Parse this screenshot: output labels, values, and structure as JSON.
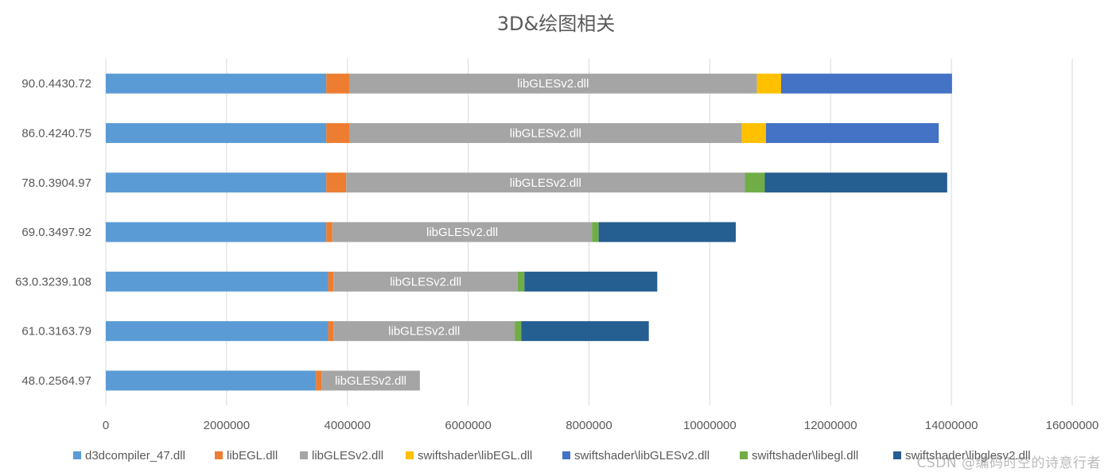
{
  "chart_data": {
    "type": "bar",
    "orientation": "horizontal",
    "stacked": true,
    "title": "3D&绘图相关",
    "xlabel": "",
    "ylabel": "",
    "xlim": [
      0,
      16000000
    ],
    "x_ticks": [
      0,
      2000000,
      4000000,
      6000000,
      8000000,
      10000000,
      12000000,
      14000000,
      16000000
    ],
    "x_tick_labels": [
      "0",
      "2000000",
      "4000000",
      "6000000",
      "8000000",
      "10000000",
      "12000000",
      "14000000",
      "16000000"
    ],
    "grid": "vertical",
    "legend_position": "bottom",
    "categories": [
      "90.0.4430.72",
      "86.0.4240.75",
      "78.0.3904.97",
      "69.0.3497.92",
      "63.0.3239.108",
      "61.0.3163.79",
      "48.0.2564.97"
    ],
    "series": [
      {
        "name": "d3dcompiler_47.dll",
        "color": "#5B9BD5",
        "values": [
          3650000,
          3650000,
          3650000,
          3650000,
          3680000,
          3680000,
          3480000
        ]
      },
      {
        "name": "libEGL.dll",
        "color": "#ED7D31",
        "values": [
          380000,
          380000,
          330000,
          100000,
          90000,
          90000,
          90000
        ]
      },
      {
        "name": "libGLESv2.dll",
        "color": "#A5A5A5",
        "values": [
          6750000,
          6500000,
          6600000,
          4300000,
          3050000,
          3000000,
          1630000
        ]
      },
      {
        "name": "swiftshader\\libEGL.dll",
        "color": "#FFC000",
        "values": [
          400000,
          400000,
          0,
          0,
          0,
          0,
          0
        ]
      },
      {
        "name": "swiftshader\\libGLESv2.dll",
        "color": "#4472C4",
        "values": [
          2830000,
          2860000,
          0,
          0,
          0,
          0,
          0
        ]
      },
      {
        "name": "swiftshader\\libegl.dll",
        "color": "#70AD47",
        "values": [
          0,
          0,
          330000,
          110000,
          110000,
          110000,
          0
        ]
      },
      {
        "name": "swiftshader\\libglesv2.dll",
        "color": "#255E91",
        "values": [
          0,
          0,
          3020000,
          2270000,
          2200000,
          2110000,
          0
        ]
      }
    ],
    "data_label": {
      "series": "libGLESv2.dll",
      "text": "libGLESv2.dll",
      "color": "#ffffff"
    },
    "text_color": "#595959",
    "grid_color": "#D9D9D9"
  },
  "watermark": "CSDN @编码时空的诗意行者"
}
